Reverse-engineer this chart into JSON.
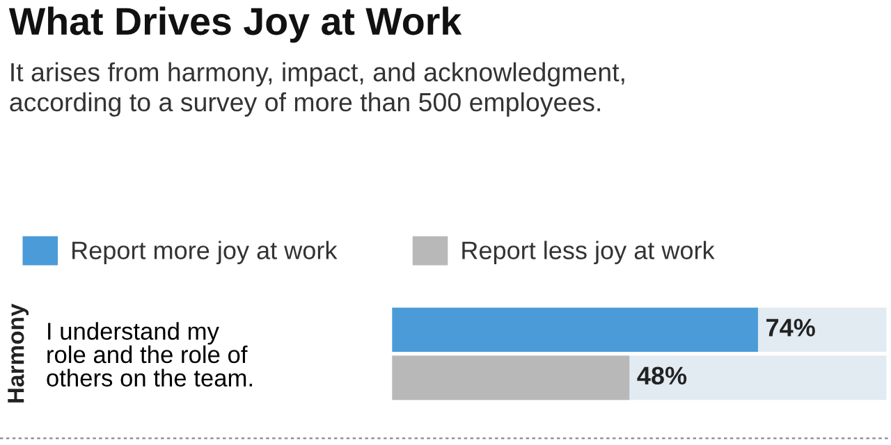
{
  "chart_data": {
    "type": "bar",
    "orientation": "horizontal",
    "title": "What Drives Joy at Work",
    "subtitle": "It arises from harmony, impact, and acknowledgment,\naccording to a survey of more than 500 employees.",
    "categories": [
      "I understand my\nrole and the role of\nothers on the team."
    ],
    "series": [
      {
        "name": "Report more joy at work",
        "color": "#4a9bd8",
        "values": [
          74
        ],
        "value_labels": [
          "74%"
        ]
      },
      {
        "name": "Report less joy at work",
        "color": "#b8b8b8",
        "values": [
          48
        ],
        "value_labels": [
          "48%"
        ]
      }
    ],
    "annotations": [
      "Harmony"
    ],
    "xlim": [
      0,
      100
    ],
    "tick_labels": false,
    "legend": "top left",
    "grid": false
  }
}
